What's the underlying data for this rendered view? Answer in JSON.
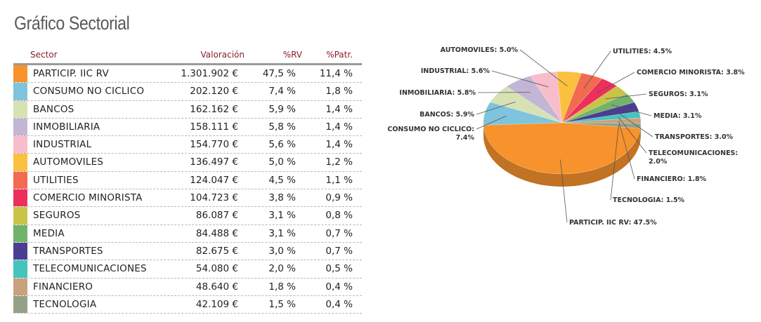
{
  "title": "Gráfico Sectorial",
  "table": {
    "headers": {
      "sector": "Sector",
      "valoracion": "Valoración",
      "rv": "%RV",
      "patr": "%Patr."
    },
    "rows": [
      {
        "sector": "PARTICIP. IIC RV",
        "valoracion": "1.301.902 €",
        "rv": "47,5 %",
        "patr": "11,4 %",
        "color": "#f7922c"
      },
      {
        "sector": "CONSUMO NO CICLICO",
        "valoracion": "202.120 €",
        "rv": "7,4 %",
        "patr": "1,8 %",
        "color": "#7fc4dc"
      },
      {
        "sector": "BANCOS",
        "valoracion": "162.162 €",
        "rv": "5,9 %",
        "patr": "1,4 %",
        "color": "#d6e2b4"
      },
      {
        "sector": "INMOBILIARIA",
        "valoracion": "158.111 €",
        "rv": "5,8 %",
        "patr": "1,4 %",
        "color": "#c2b6d4"
      },
      {
        "sector": "INDUSTRIAL",
        "valoracion": "154.770 €",
        "rv": "5,6 %",
        "patr": "1,4 %",
        "color": "#f8bccb"
      },
      {
        "sector": "AUTOMOVILES",
        "valoracion": "136.497 €",
        "rv": "5,0 %",
        "patr": "1,2 %",
        "color": "#fbc03e"
      },
      {
        "sector": "UTILITIES",
        "valoracion": "124.047 €",
        "rv": "4,5 %",
        "patr": "1,1 %",
        "color": "#f26a4f"
      },
      {
        "sector": "COMERCIO MINORISTA",
        "valoracion": "104.723 €",
        "rv": "3,8 %",
        "patr": "0,9 %",
        "color": "#ee2f5c"
      },
      {
        "sector": "SEGUROS",
        "valoracion": "86.087 €",
        "rv": "3,1 %",
        "patr": "0,8 %",
        "color": "#c9c348"
      },
      {
        "sector": "MEDIA",
        "valoracion": "84.488 €",
        "rv": "3,1 %",
        "patr": "0,7 %",
        "color": "#72b36a"
      },
      {
        "sector": "TRANSPORTES",
        "valoracion": "82.675 €",
        "rv": "3,0 %",
        "patr": "0,7 %",
        "color": "#4b3d91"
      },
      {
        "sector": "TELECOMUNICACIONES",
        "valoracion": "54.080 €",
        "rv": "2,0 %",
        "patr": "0,5 %",
        "color": "#45c4bd"
      },
      {
        "sector": "FINANCIERO",
        "valoracion": "48.640 €",
        "rv": "1,8 %",
        "patr": "0,4 %",
        "color": "#c8a27f"
      },
      {
        "sector": "TECNOLOGIA",
        "valoracion": "42.109 €",
        "rv": "1,5 %",
        "patr": "0,4 %",
        "color": "#93a286"
      }
    ]
  },
  "chart_data": {
    "type": "pie",
    "slices": [
      {
        "name": "PARTICIP. IIC RV",
        "value": 47.5,
        "label": "PARTICIP. IIC RV: 47.5%",
        "color": "#f7922c"
      },
      {
        "name": "CONSUMO NO CICLICO",
        "value": 7.4,
        "label": "CONSUMO NO CICLICO:\n7.4%",
        "color": "#7fc4dc"
      },
      {
        "name": "BANCOS",
        "value": 5.9,
        "label": "BANCOS: 5.9%",
        "color": "#d6e2b4"
      },
      {
        "name": "INMOBILIARIA",
        "value": 5.8,
        "label": "INMOBILIARIA: 5.8%",
        "color": "#c2b6d4"
      },
      {
        "name": "INDUSTRIAL",
        "value": 5.6,
        "label": "INDUSTRIAL: 5.6%",
        "color": "#f8bccb"
      },
      {
        "name": "AUTOMOVILES",
        "value": 5.0,
        "label": "AUTOMOVILES: 5.0%",
        "color": "#fbc03e"
      },
      {
        "name": "UTILITIES",
        "value": 4.5,
        "label": "UTILITIES: 4.5%",
        "color": "#f26a4f"
      },
      {
        "name": "COMERCIO MINORISTA",
        "value": 3.8,
        "label": "COMERCIO MINORISTA: 3.8%",
        "color": "#ee2f5c"
      },
      {
        "name": "SEGUROS",
        "value": 3.1,
        "label": "SEGUROS: 3.1%",
        "color": "#c9c348"
      },
      {
        "name": "MEDIA",
        "value": 3.1,
        "label": "MEDIA: 3.1%",
        "color": "#72b36a"
      },
      {
        "name": "TRANSPORTES",
        "value": 3.0,
        "label": "TRANSPORTES: 3.0%",
        "color": "#4b3d91"
      },
      {
        "name": "TELECOMUNICACIONES",
        "value": 2.0,
        "label": "TELECOMUNICACIONES:\n2.0%",
        "color": "#45c4bd"
      },
      {
        "name": "FINANCIERO",
        "value": 1.8,
        "label": "FINANCIERO: 1.8%",
        "color": "#c8a27f"
      },
      {
        "name": "TECNOLOGIA",
        "value": 1.5,
        "label": "TECNOLOGIA: 1.5%",
        "color": "#93a286"
      }
    ]
  }
}
